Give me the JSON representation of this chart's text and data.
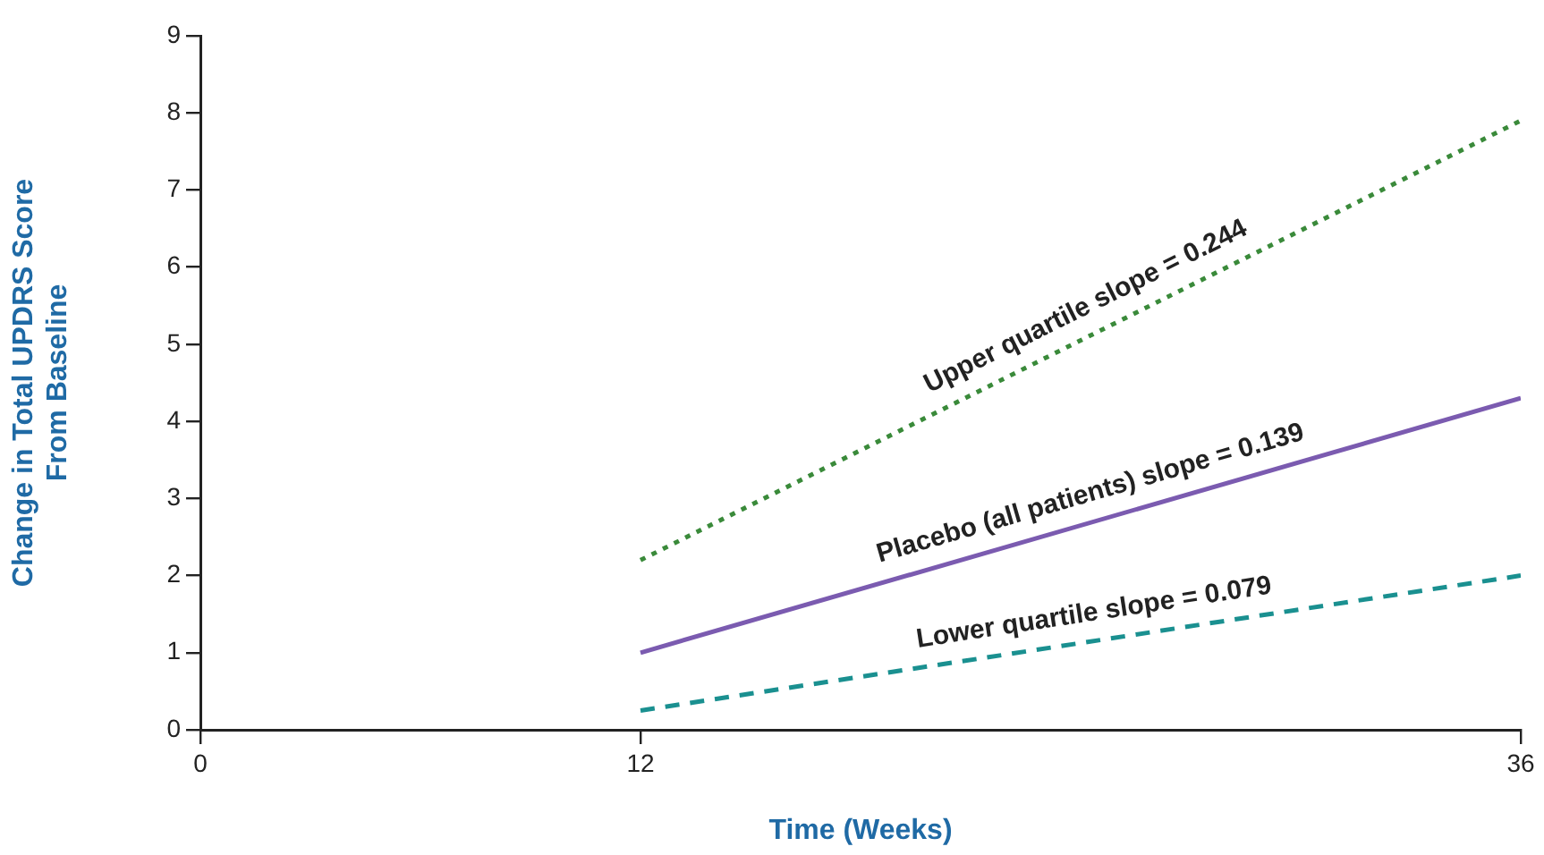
{
  "chart_data": {
    "type": "line",
    "xlabel": "Time (Weeks)",
    "ylabel": "Change in Total UPDRS Score\nFrom Baseline",
    "x": [
      12,
      36
    ],
    "xlim": [
      0,
      36
    ],
    "xticks": [
      0,
      12,
      36
    ],
    "ylim": [
      0,
      9
    ],
    "yticks": [
      0,
      1,
      2,
      3,
      4,
      5,
      6,
      7,
      8,
      9
    ],
    "grid": false,
    "legend": false,
    "marker": "none",
    "series": [
      {
        "name": "Upper quartile slope = 0.244",
        "color": "#3a8a3a",
        "line_style": "dotted",
        "values": [
          2.2,
          7.9
        ]
      },
      {
        "name": "Placebo (all patients) slope = 0.139",
        "color": "#7b5bb0",
        "line_style": "solid",
        "values": [
          1.0,
          4.3
        ]
      },
      {
        "name": "Lower quartile slope = 0.079",
        "color": "#1a9090",
        "line_style": "dashed",
        "values": [
          0.25,
          2.0
        ]
      }
    ]
  }
}
